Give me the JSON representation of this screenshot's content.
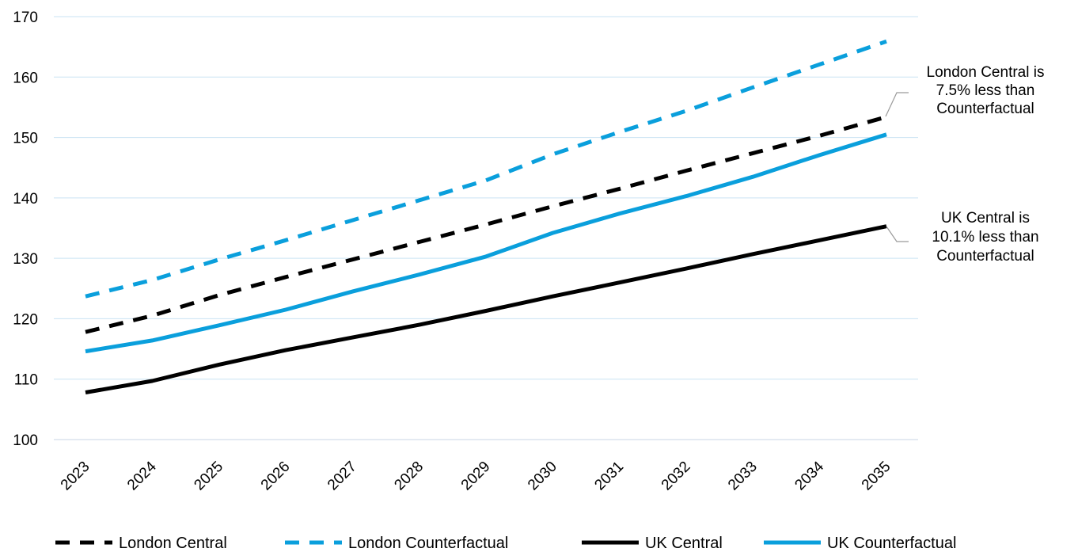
{
  "chart_data": {
    "type": "line",
    "title": "",
    "xlabel": "",
    "ylabel": "",
    "categories": [
      "2023",
      "2024",
      "2025",
      "2026",
      "2027",
      "2028",
      "2029",
      "2030",
      "2031",
      "2032",
      "2033",
      "2034",
      "2035"
    ],
    "ylim": [
      100,
      170
    ],
    "yticks": [
      100,
      110,
      120,
      130,
      140,
      150,
      160,
      170
    ],
    "grid": true,
    "legend_position": "bottom",
    "series": [
      {
        "name": "London Central",
        "style": "dashed",
        "color": "#000000",
        "values": [
          117.8,
          120.5,
          123.9,
          126.9,
          129.8,
          132.7,
          135.6,
          138.6,
          141.5,
          144.5,
          147.4,
          150.3,
          153.4
        ]
      },
      {
        "name": "London Counterfactual",
        "style": "dashed",
        "color": "#0a9fdc",
        "values": [
          123.7,
          126.4,
          129.8,
          133.0,
          136.3,
          139.6,
          142.9,
          147.2,
          150.9,
          154.4,
          158.3,
          162.1,
          165.9
        ]
      },
      {
        "name": "UK Central",
        "style": "solid",
        "color": "#000000",
        "values": [
          107.8,
          109.7,
          112.4,
          114.8,
          116.9,
          119.0,
          121.3,
          123.7,
          126.0,
          128.3,
          130.7,
          133.0,
          135.3
        ]
      },
      {
        "name": "UK Counterfactual",
        "style": "solid",
        "color": "#0a9fdc",
        "values": [
          114.6,
          116.4,
          118.9,
          121.5,
          124.5,
          127.3,
          130.3,
          134.2,
          137.4,
          140.3,
          143.5,
          147.1,
          150.5
        ]
      }
    ],
    "annotations": [
      {
        "lines": [
          "London Central is",
          "7.5% less than",
          "Counterfactual"
        ],
        "target_series": "London Central",
        "target_category": "2035"
      },
      {
        "lines": [
          "UK Central is",
          "10.1% less than",
          "Counterfactual"
        ],
        "target_series": "UK Central",
        "target_category": "2035"
      }
    ]
  }
}
